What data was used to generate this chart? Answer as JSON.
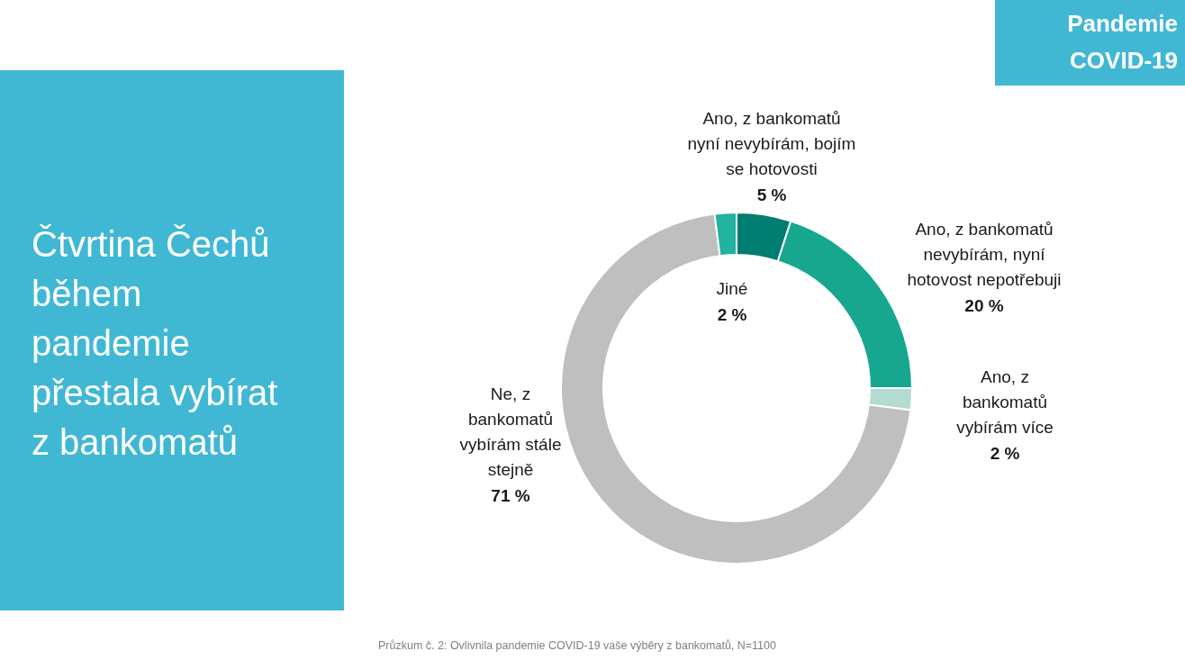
{
  "chart_data": {
    "type": "donut",
    "title": "Čtvrtina Čechů\nběhem\npandemie\npřestala vybírat\nz bankomatů",
    "subtitle": "Pandemie\nCOVID-19",
    "categories": [
      "Ano, z bankomatů\nnyní nevybírám, bojím\nse hotovosti",
      "Ano, z bankomatů\nnevybírám, nyní\nhotovost nepotřebuji",
      "Ano, z\nbankomatů\nvybírám více",
      "Ne, z\nbankomatů\nvybírám stále\nstejně",
      "Jiné"
    ],
    "values": [
      5,
      20,
      2,
      71,
      2
    ],
    "colors": [
      "#007d71",
      "#17a78f",
      "#b3dbd2",
      "#bfbfbf",
      "#22b2a0"
    ],
    "value_labels": [
      "5 %",
      "20 %",
      "2 %",
      "71 %",
      "2 %"
    ],
    "annotations": [
      "Průzkum č. 2: Ovlivnila pandemie COVID-19 vaše výběry z bankomatů, N=1100"
    ]
  }
}
